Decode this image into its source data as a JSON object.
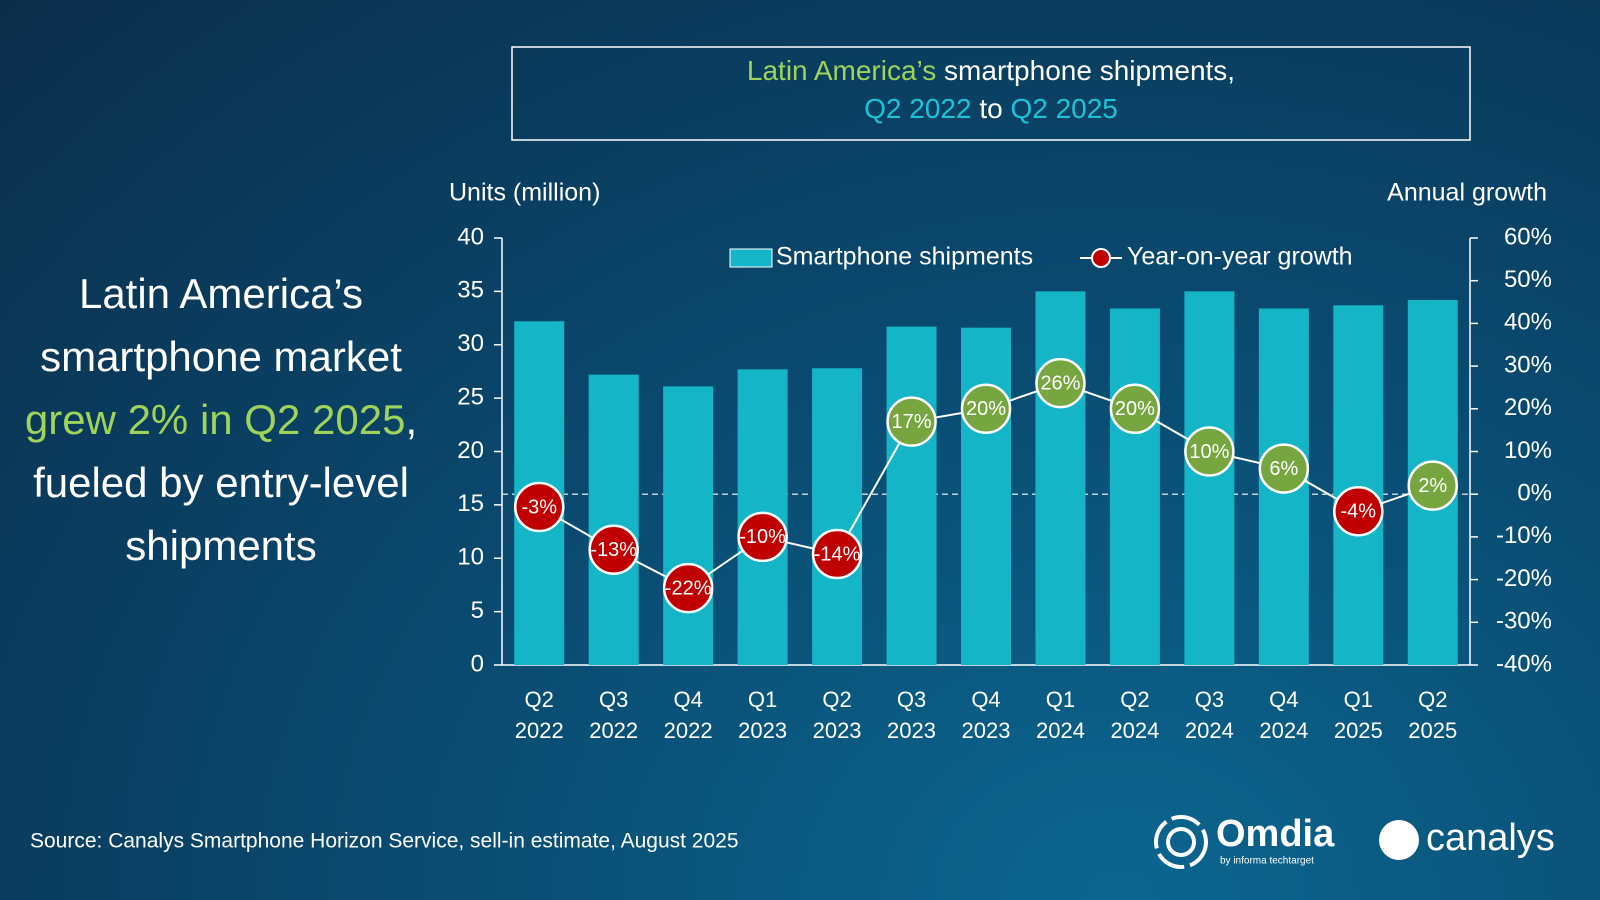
{
  "headline": [
    "Latin America’s smartphone market",
    "grew 2% in Q2 2025",
    ", fueled by entry-level shipments"
  ],
  "source": "Source: Canalys Smartphone Horizon Service, sell-in estimate, August 2025",
  "logos": [
    "Omdia",
    "by informa techtarget",
    "canalys"
  ],
  "chart_data": {
    "type": "bar",
    "title": [
      "Latin America’s",
      "smartphone shipments,",
      "Q2 2022",
      "to",
      "Q2 2025"
    ],
    "ylabel": "Units (million)",
    "y2label": "Annual growth",
    "categories": [
      "Q2 2022",
      "Q3 2022",
      "Q4 2022",
      "Q1 2023",
      "Q2 2023",
      "Q3 2023",
      "Q4 2023",
      "Q1 2024",
      "Q2 2024",
      "Q3 2024",
      "Q4 2024",
      "Q1 2025",
      "Q2 2025"
    ],
    "series": [
      {
        "name": "Smartphone shipments",
        "type": "bar",
        "color": "#13b5c6",
        "values": [
          32.2,
          27.2,
          26.1,
          27.7,
          27.8,
          31.7,
          31.6,
          35.0,
          33.4,
          35.0,
          33.4,
          33.7,
          34.2
        ]
      },
      {
        "name": "Year-on-year growth",
        "type": "line",
        "axis": "y2",
        "color": "#77a640",
        "negative_color": "#c00000",
        "values": [
          -3,
          -13,
          -22,
          -10,
          -14,
          17,
          20,
          26,
          20,
          10,
          6,
          -4,
          2
        ],
        "value_labels": [
          "-3%",
          "-13%",
          "-22%",
          "-10%",
          "-14%",
          "17%",
          "20%",
          "26%",
          "20%",
          "10%",
          "6%",
          "-4%",
          "2%"
        ]
      }
    ],
    "ylim": [
      0,
      40
    ],
    "yticks": [
      0,
      5,
      10,
      15,
      20,
      25,
      30,
      35,
      40
    ],
    "y2lim": [
      -40,
      60
    ],
    "y2ticks": [
      {
        "value": -40,
        "label": "-40%"
      },
      {
        "value": -30,
        "label": "-30%"
      },
      {
        "value": -20,
        "label": "-20%"
      },
      {
        "value": -10,
        "label": "-10%"
      },
      {
        "value": 0,
        "label": "0%"
      },
      {
        "value": 10,
        "label": "10%"
      },
      {
        "value": 20,
        "label": "20%"
      },
      {
        "value": 30,
        "label": "30%"
      },
      {
        "value": 40,
        "label": "40%"
      },
      {
        "value": 50,
        "label": "50%"
      },
      {
        "value": 60,
        "label": "60%"
      }
    ],
    "legend": "top"
  }
}
